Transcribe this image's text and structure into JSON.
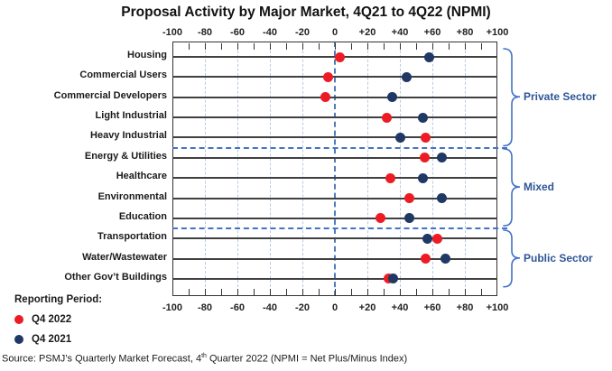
{
  "title": "Proposal Activity by Major Market, 4Q21 to 4Q22 (NPMI)",
  "legend": {
    "heading": "Reporting Period:",
    "items": [
      {
        "label": "Q4 2022",
        "color": "#ed1c24"
      },
      {
        "label": "Q4 2021",
        "color": "#1f3864"
      }
    ]
  },
  "source_note": {
    "prefix": "Source: PSMJ’s Quarterly Market Forecast, 4",
    "sup": "th",
    "suffix": " Quarter 2022 (NPMI = Net Plus/Minus Index)"
  },
  "sectors": [
    {
      "label": "Private Sector",
      "from": 0,
      "to": 4
    },
    {
      "label": "Mixed",
      "from": 5,
      "to": 8
    },
    {
      "label": "Public Sector",
      "from": 9,
      "to": 11
    }
  ],
  "colors": {
    "accent_blue": "#4472c4",
    "sector_label": "#2e5597",
    "grid": "#b9c9de",
    "row_line": "#404040",
    "zero_line": "#4f7cba",
    "frame": "#333333"
  },
  "chart_data": {
    "type": "scatter",
    "title": "Proposal Activity by Major Market, 4Q21 to 4Q22 (NPMI)",
    "categories": [
      "Housing",
      "Commercial Users",
      "Commercial Developers",
      "Light Industrial",
      "Heavy Industrial",
      "Energy & Utilities",
      "Healthcare",
      "Environmental",
      "Education",
      "Transportation",
      "Water/Wastewater",
      "Other Gov’t Buildings"
    ],
    "series": [
      {
        "name": "Q4 2022",
        "color": "#ed1c24",
        "values": [
          3,
          -4,
          -6,
          32,
          56,
          55,
          34,
          46,
          28,
          63,
          56,
          33
        ]
      },
      {
        "name": "Q4 2021",
        "color": "#1f3864",
        "values": [
          58,
          44,
          35,
          54,
          40,
          66,
          54,
          66,
          46,
          57,
          68,
          36
        ]
      }
    ],
    "xlim": [
      -100,
      100
    ],
    "x_tick_labels": [
      "-100",
      "-80",
      "-60",
      "-40",
      "-20",
      "0",
      "+20",
      "+40",
      "+60",
      "+80",
      "+100"
    ],
    "major_step": 20,
    "minor_step": 10,
    "xlabel": "",
    "ylabel": "",
    "legend_position": "bottom-left",
    "grid": "vertical-dashed",
    "axis_labels_top_and_bottom": true
  }
}
